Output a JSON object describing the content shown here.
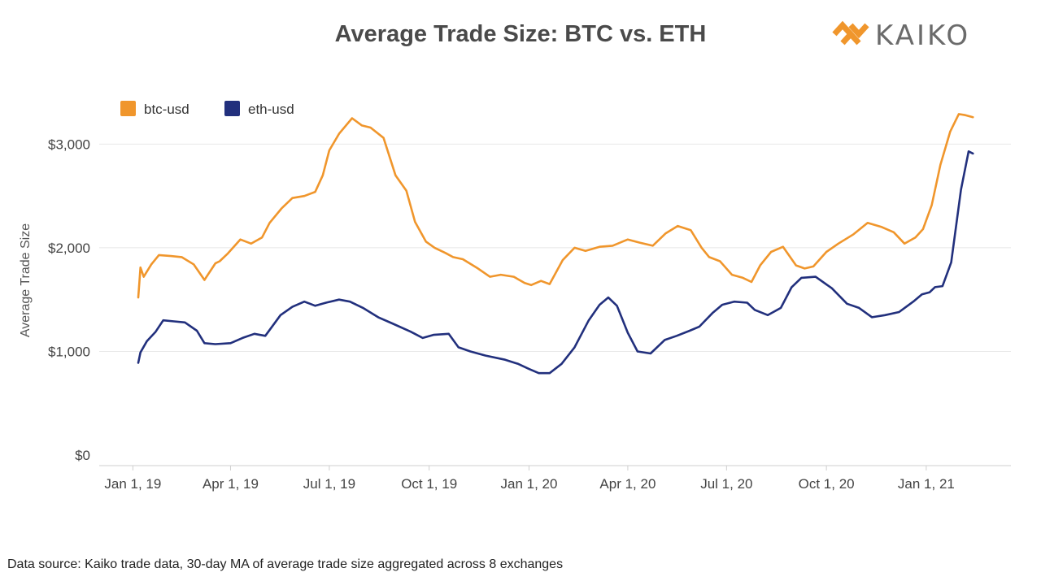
{
  "header": {
    "title": "Average Trade Size: BTC vs. ETH"
  },
  "logo": {
    "text": "KAIKO",
    "color": "#f0962c",
    "text_color": "#6b6b6b"
  },
  "footer": {
    "note": "Data source: Kaiko trade data, 30-day MA of average trade size aggregated across 8 exchanges"
  },
  "chart_data": {
    "type": "line",
    "title": "Average Trade Size: BTC vs. ETH",
    "xlabel": "",
    "ylabel": "Average Trade Size",
    "ylim": [
      0,
      3450
    ],
    "yticks": [
      0,
      1000,
      2000,
      3000
    ],
    "ytick_labels": [
      "$0",
      "$1,000",
      "$2,000",
      "$3,000"
    ],
    "xlim": [
      "2018-12-01",
      "2021-03-20"
    ],
    "xticks": [
      "2019-01-01",
      "2019-04-01",
      "2019-07-01",
      "2019-10-01",
      "2020-01-01",
      "2020-04-01",
      "2020-07-01",
      "2020-10-01",
      "2021-01-01"
    ],
    "xtick_labels": [
      "Jan 1, 19",
      "Apr 1, 19",
      "Jul 1, 19",
      "Oct 1, 19",
      "Jan 1, 20",
      "Apr 1, 20",
      "Jul 1, 20",
      "Oct 1, 20",
      "Jan 1, 21"
    ],
    "grid": "horizontal",
    "legend_position": "top-left",
    "series": [
      {
        "name": "btc-usd",
        "color": "#f0962c",
        "x": [
          "2019-01-06",
          "2019-01-08",
          "2019-01-11",
          "2019-01-18",
          "2019-01-25",
          "2019-02-05",
          "2019-02-15",
          "2019-02-26",
          "2019-03-08",
          "2019-03-18",
          "2019-03-22",
          "2019-03-29",
          "2019-04-10",
          "2019-04-20",
          "2019-04-30",
          "2019-05-07",
          "2019-05-18",
          "2019-05-28",
          "2019-06-08",
          "2019-06-18",
          "2019-06-25",
          "2019-07-01",
          "2019-07-10",
          "2019-07-22",
          "2019-07-31",
          "2019-08-08",
          "2019-08-20",
          "2019-08-31",
          "2019-09-10",
          "2019-09-18",
          "2019-09-28",
          "2019-10-06",
          "2019-10-16",
          "2019-10-23",
          "2019-11-01",
          "2019-11-15",
          "2019-11-26",
          "2019-12-06",
          "2019-12-18",
          "2019-12-28",
          "2020-01-03",
          "2020-01-12",
          "2020-01-20",
          "2020-02-01",
          "2020-02-12",
          "2020-02-22",
          "2020-03-06",
          "2020-03-18",
          "2020-04-01",
          "2020-04-12",
          "2020-04-24",
          "2020-05-06",
          "2020-05-17",
          "2020-05-29",
          "2020-06-08",
          "2020-06-15",
          "2020-06-25",
          "2020-07-06",
          "2020-07-16",
          "2020-07-24",
          "2020-08-01",
          "2020-08-11",
          "2020-08-22",
          "2020-09-03",
          "2020-09-11",
          "2020-09-19",
          "2020-10-01",
          "2020-10-12",
          "2020-10-26",
          "2020-11-08",
          "2020-11-21",
          "2020-12-02",
          "2020-12-12",
          "2020-12-22",
          "2020-12-29",
          "2021-01-06",
          "2021-01-14",
          "2021-01-23",
          "2021-01-31",
          "2021-02-06",
          "2021-02-13"
        ],
        "y": [
          1520,
          1810,
          1720,
          1840,
          1930,
          1920,
          1910,
          1840,
          1690,
          1850,
          1870,
          1940,
          2080,
          2040,
          2100,
          2240,
          2380,
          2480,
          2500,
          2540,
          2700,
          2940,
          3100,
          3250,
          3180,
          3160,
          3060,
          2700,
          2550,
          2250,
          2060,
          2000,
          1950,
          1910,
          1890,
          1800,
          1720,
          1740,
          1720,
          1660,
          1640,
          1680,
          1650,
          1880,
          2000,
          1970,
          2010,
          2020,
          2080,
          2050,
          2020,
          2140,
          2210,
          2170,
          2000,
          1910,
          1870,
          1740,
          1710,
          1670,
          1830,
          1960,
          2010,
          1830,
          1800,
          1820,
          1960,
          2040,
          2130,
          2240,
          2200,
          2150,
          2040,
          2100,
          2180,
          2410,
          2800,
          3120,
          3290,
          3280,
          3260
        ]
      },
      {
        "name": "eth-usd",
        "color": "#22307d",
        "x": [
          "2019-01-06",
          "2019-01-08",
          "2019-01-14",
          "2019-01-22",
          "2019-01-29",
          "2019-02-08",
          "2019-02-18",
          "2019-03-01",
          "2019-03-08",
          "2019-03-18",
          "2019-04-01",
          "2019-04-12",
          "2019-04-23",
          "2019-05-03",
          "2019-05-17",
          "2019-05-28",
          "2019-06-08",
          "2019-06-18",
          "2019-06-28",
          "2019-07-10",
          "2019-07-20",
          "2019-08-01",
          "2019-08-15",
          "2019-08-28",
          "2019-09-14",
          "2019-09-25",
          "2019-10-05",
          "2019-10-19",
          "2019-10-28",
          "2019-11-08",
          "2019-11-22",
          "2019-12-10",
          "2019-12-22",
          "2020-01-01",
          "2020-01-10",
          "2020-01-20",
          "2020-01-31",
          "2020-02-12",
          "2020-02-25",
          "2020-03-06",
          "2020-03-14",
          "2020-03-22",
          "2020-04-01",
          "2020-04-10",
          "2020-04-22",
          "2020-05-05",
          "2020-05-16",
          "2020-05-28",
          "2020-06-06",
          "2020-06-18",
          "2020-06-27",
          "2020-07-08",
          "2020-07-20",
          "2020-07-27",
          "2020-08-08",
          "2020-08-20",
          "2020-08-30",
          "2020-09-08",
          "2020-09-21",
          "2020-10-06",
          "2020-10-20",
          "2020-10-31",
          "2020-11-12",
          "2020-11-24",
          "2020-12-07",
          "2020-12-20",
          "2020-12-28",
          "2021-01-04",
          "2021-01-09",
          "2021-01-16",
          "2021-01-24",
          "2021-02-02",
          "2021-02-09",
          "2021-02-13"
        ],
        "y": [
          890,
          990,
          1100,
          1190,
          1300,
          1290,
          1280,
          1200,
          1080,
          1070,
          1080,
          1130,
          1170,
          1150,
          1350,
          1430,
          1480,
          1440,
          1470,
          1500,
          1480,
          1420,
          1330,
          1270,
          1190,
          1130,
          1160,
          1170,
          1040,
          1000,
          960,
          920,
          880,
          830,
          790,
          790,
          880,
          1040,
          1300,
          1450,
          1520,
          1440,
          1180,
          1000,
          980,
          1110,
          1150,
          1200,
          1240,
          1370,
          1450,
          1480,
          1470,
          1400,
          1350,
          1420,
          1620,
          1710,
          1720,
          1610,
          1460,
          1420,
          1330,
          1350,
          1380,
          1480,
          1550,
          1570,
          1620,
          1630,
          1860,
          2560,
          2930,
          2910
        ]
      }
    ]
  }
}
